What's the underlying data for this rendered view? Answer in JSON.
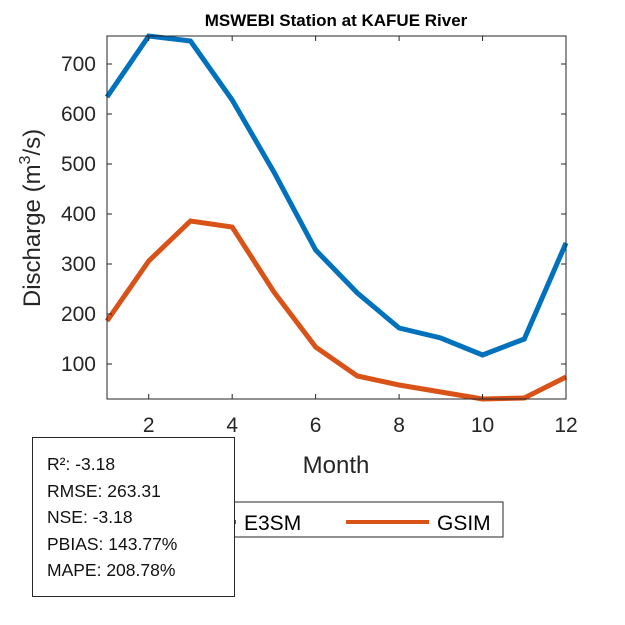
{
  "chart_data": {
    "type": "line",
    "title": "MSWEBI  Station at  KAFUE  River",
    "xlabel": "Month",
    "ylabel_main": "Discharge (m",
    "ylabel_sup": "3",
    "ylabel_tail": "/s)",
    "x": [
      1,
      2,
      3,
      4,
      5,
      6,
      7,
      8,
      9,
      10,
      11,
      12
    ],
    "xlim": [
      1,
      12
    ],
    "ylim": [
      30,
      756
    ],
    "xticks": [
      2,
      4,
      6,
      8,
      10,
      12
    ],
    "xtick_labels": [
      "2",
      "4",
      "6",
      "8",
      "10",
      "12"
    ],
    "yticks": [
      100,
      200,
      300,
      400,
      500,
      600,
      700
    ],
    "ytick_labels": [
      "100",
      "200",
      "300",
      "400",
      "500",
      "600",
      "700"
    ],
    "grid": false,
    "legend_position": "bottom-outside",
    "series": [
      {
        "name": "E3SM",
        "color": "#0072BD",
        "values": [
          634,
          756,
          746,
          628,
          484,
          328,
          242,
          172,
          152,
          118,
          150,
          342
        ]
      },
      {
        "name": "GSIM",
        "color": "#D95319",
        "values": [
          186,
          306,
          386,
          374,
          244,
          134,
          76,
          58,
          44,
          30,
          32,
          74
        ]
      }
    ]
  },
  "stats": [
    "R²: -3.18",
    "RMSE: 263.31",
    "NSE: -3.18",
    "PBIAS: 143.77%",
    "MAPE: 208.78%"
  ]
}
